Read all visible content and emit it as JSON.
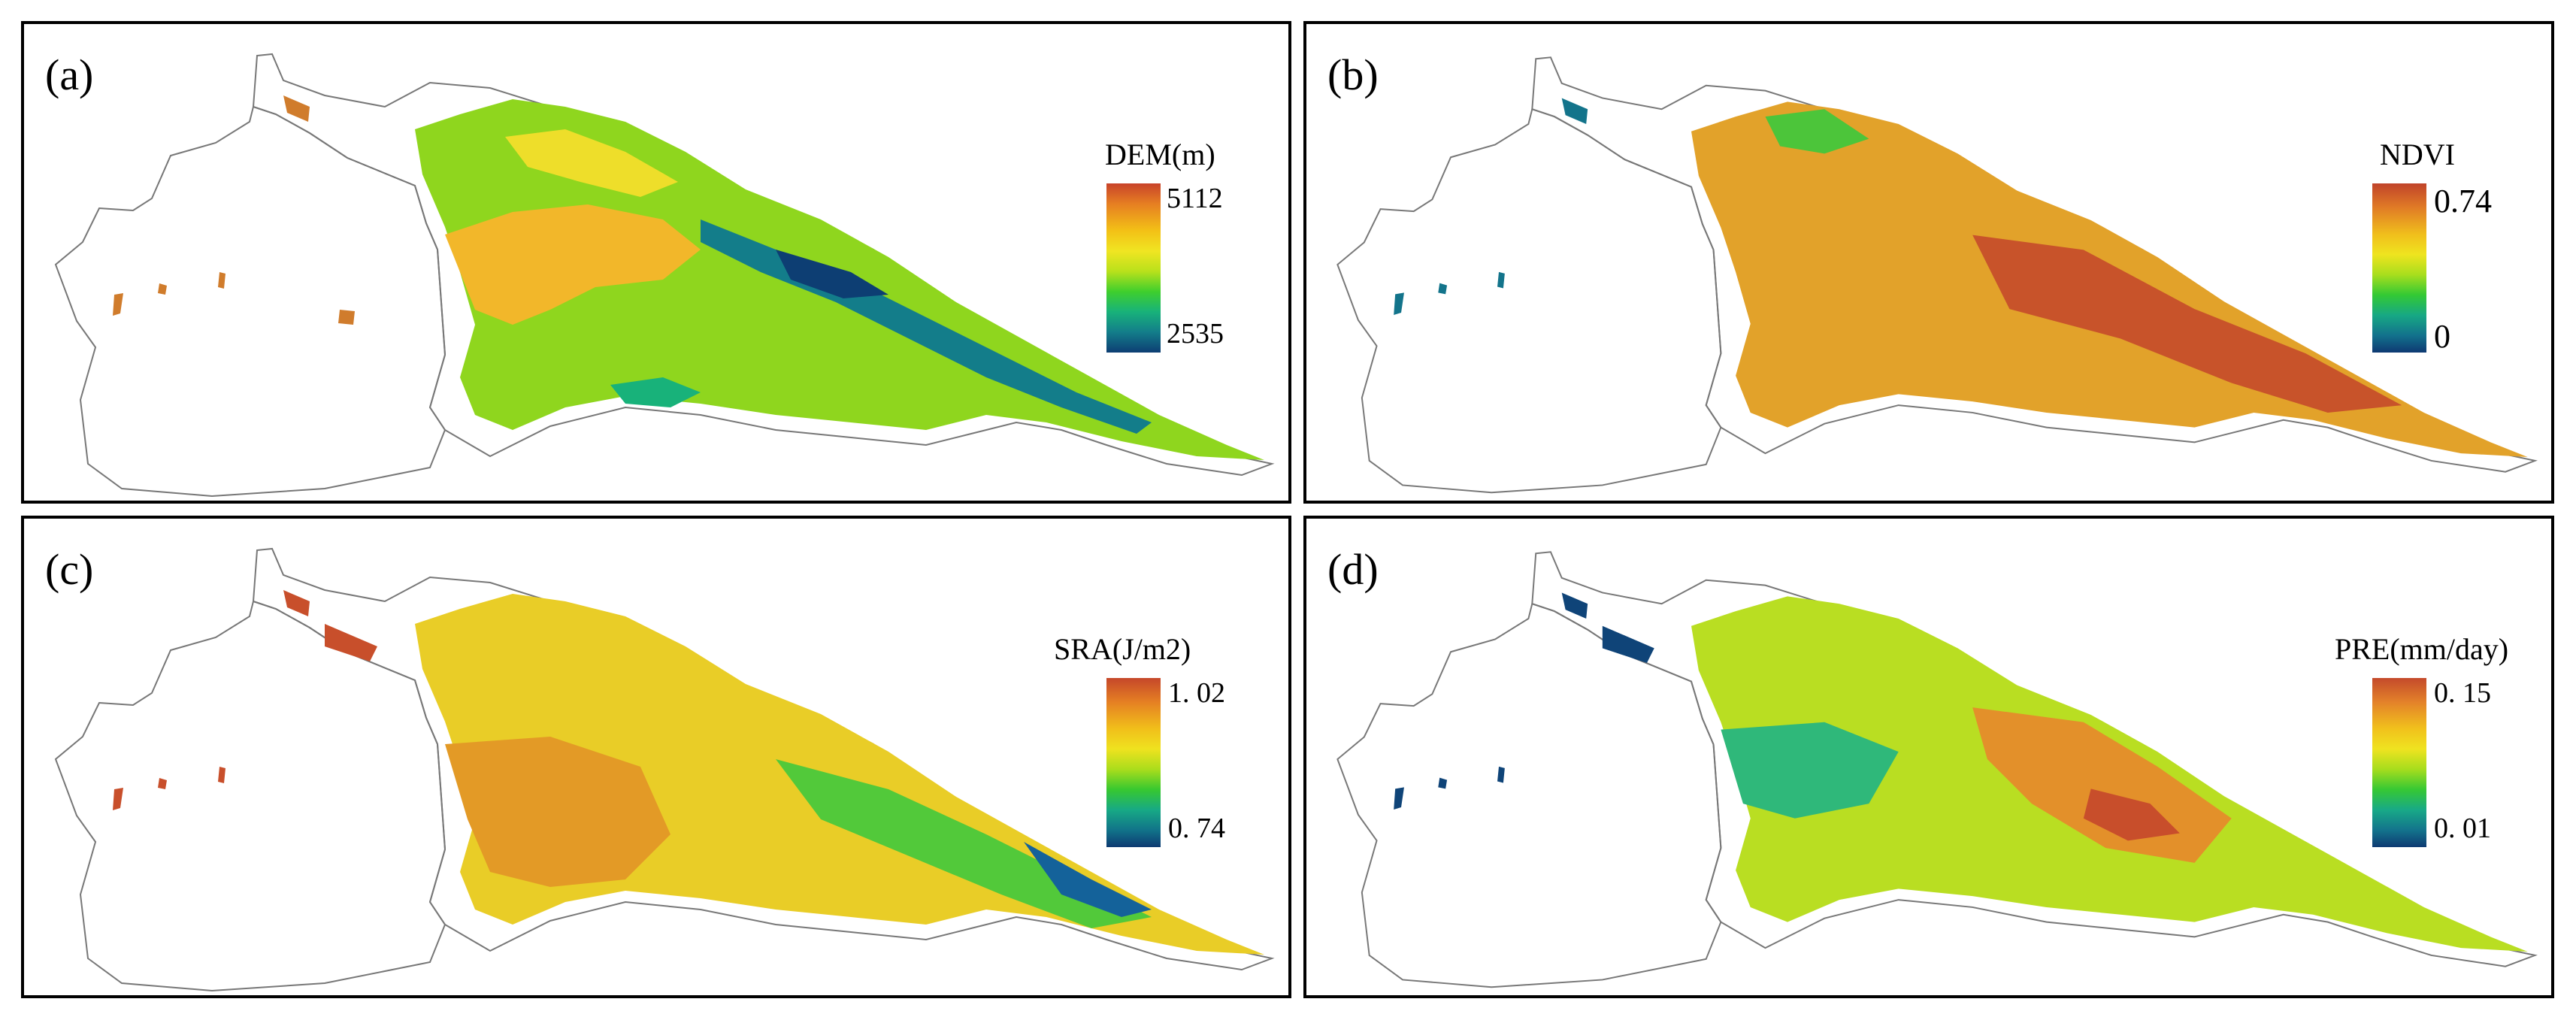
{
  "panels": [
    {
      "label": "(a)",
      "legend_title": "DEM(m)",
      "max": "5112",
      "min": "2535"
    },
    {
      "label": "(b)",
      "legend_title": "NDVI",
      "max": "0.74",
      "min": "0"
    },
    {
      "label": "(c)",
      "legend_title": "SRA(J/m2)",
      "max": "1. 02",
      "min": "0. 74"
    },
    {
      "label": "(d)",
      "legend_title": "PRE(mm/day)",
      "max": "0. 15",
      "min": "0. 01"
    }
  ],
  "colors": {
    "high": "#c8432a",
    "upper": "#f3c116",
    "mid": "#f0e522",
    "lower": "#3fcf2d",
    "low": "#0d3e73",
    "outline": "#777777"
  }
}
